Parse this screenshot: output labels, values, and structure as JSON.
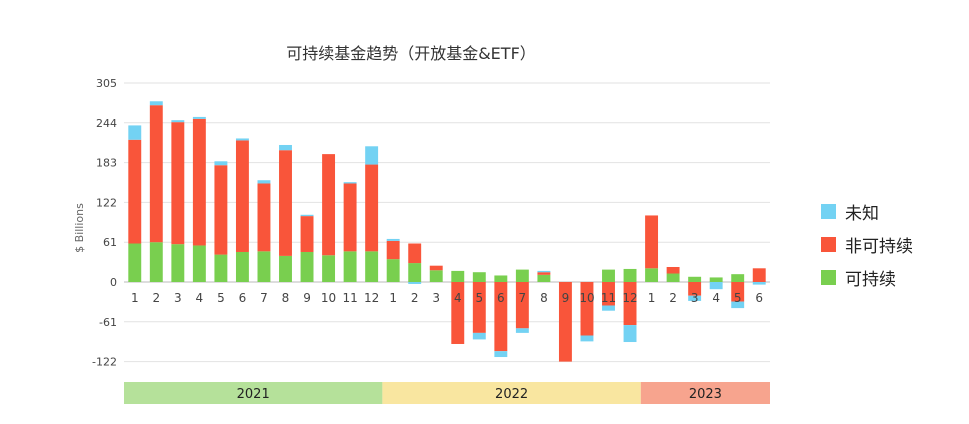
{
  "chart_data": {
    "type": "bar",
    "stacked": true,
    "title": "可持续基金趋势（开放基金&ETF）",
    "ylabel": "$ Billions",
    "ylim": [
      -122,
      305
    ],
    "yticks": [
      305,
      244,
      183,
      122,
      61,
      0,
      -61,
      -122
    ],
    "grid": true,
    "legend_position": "right",
    "categories": [
      "1",
      "2",
      "3",
      "4",
      "5",
      "6",
      "7",
      "8",
      "9",
      "10",
      "11",
      "12",
      "1",
      "2",
      "3",
      "4",
      "5",
      "6",
      "7",
      "8",
      "9",
      "10",
      "11",
      "12",
      "1",
      "2",
      "3",
      "4",
      "5",
      "6"
    ],
    "year_bands": [
      {
        "label": "2021",
        "count": 12,
        "color": "#b5e19a"
      },
      {
        "label": "2022",
        "count": 12,
        "color": "#f9e6a0"
      },
      {
        "label": "2023",
        "count": 6,
        "color": "#f7a48e"
      }
    ],
    "series": [
      {
        "name": "可持续",
        "color": "#79cf4f",
        "values": [
          59,
          61,
          58,
          56,
          42,
          46,
          47,
          40,
          46,
          41,
          47,
          47,
          35,
          29,
          18,
          17,
          15,
          10,
          19,
          11,
          0,
          0,
          19,
          20,
          21,
          13,
          8,
          7,
          12,
          0
        ]
      },
      {
        "name": "非可持续",
        "color": "#f9553a",
        "values": [
          159,
          210,
          187,
          194,
          137,
          171,
          104,
          162,
          55,
          155,
          104,
          133,
          28,
          30,
          7,
          -95,
          -78,
          -106,
          -71,
          4,
          -122,
          -82,
          -36,
          -66,
          81,
          10,
          -21,
          0,
          -30,
          21
        ]
      },
      {
        "name": "未知",
        "color": "#73d2f3",
        "values": [
          22,
          6,
          3,
          3,
          6,
          3,
          5,
          8,
          2,
          0,
          2,
          28,
          3,
          -3,
          0,
          0,
          -10,
          -9,
          -7,
          2,
          0,
          -9,
          -8,
          -26,
          0,
          0,
          -8,
          -11,
          -10,
          -4
        ]
      }
    ]
  }
}
